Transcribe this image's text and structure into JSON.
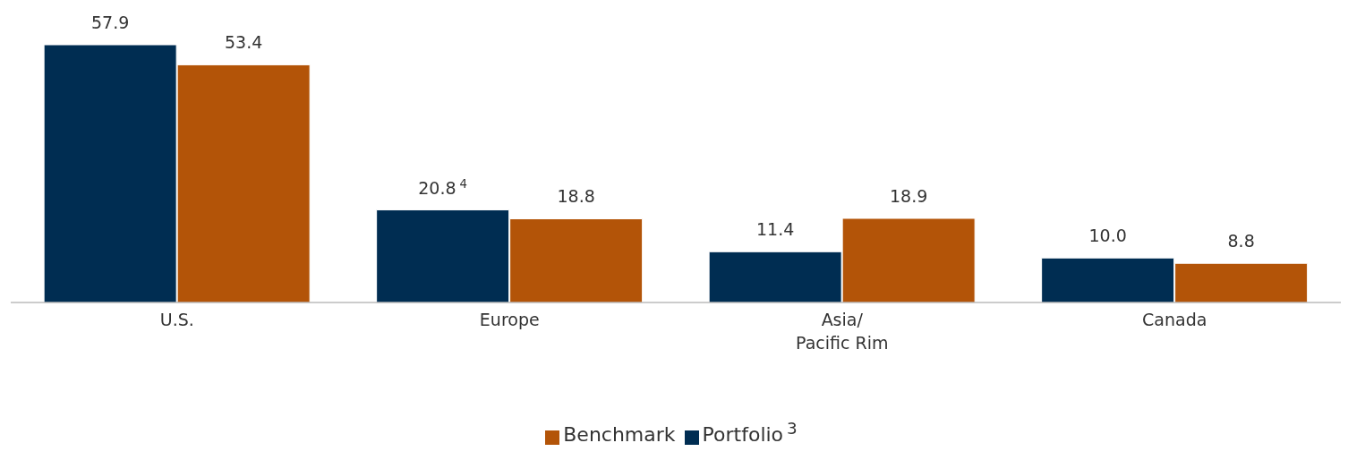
{
  "chart_data": {
    "type": "bar",
    "categories": [
      "U.S.",
      "Europe",
      "Asia/\nPacific Rim",
      "Canada"
    ],
    "series": [
      {
        "name": "Portfolio$^{3}$",
        "color": "#002d52",
        "values": [
          57.9,
          20.8,
          11.4,
          10.0
        ],
        "value_labels": [
          "57.9",
          "20.8$^{4}$",
          "11.4",
          "10.0"
        ]
      },
      {
        "name": "Benchmark",
        "color": "#b35408",
        "values": [
          53.4,
          18.8,
          18.9,
          8.8
        ],
        "value_labels": [
          "53.4",
          "18.8",
          "18.9",
          "8.8"
        ]
      }
    ],
    "grid": false,
    "legend": "bottom"
  }
}
